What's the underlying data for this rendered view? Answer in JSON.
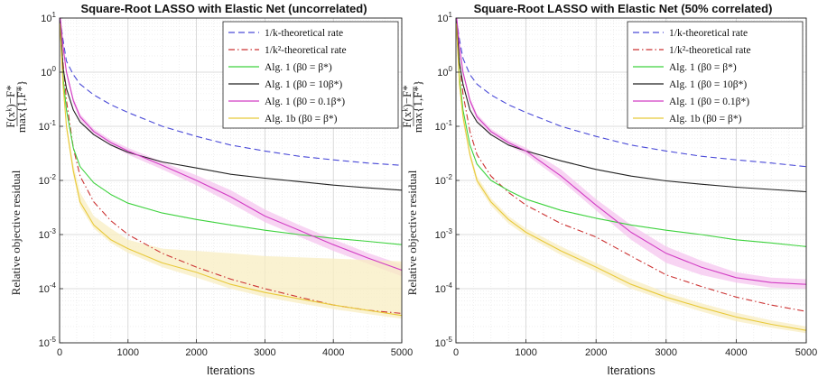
{
  "chart_data": [
    {
      "type": "line",
      "title": "Square-Root LASSO with Elastic Net (uncorrelated)",
      "xlabel": "Iterations",
      "ylabel": "Relative objective residual",
      "ylabel_formula": "F(x^k)−F* / max{1,F*}",
      "xlim": [
        0,
        5000
      ],
      "ylim_log10": [
        -5,
        1
      ],
      "yscale": "log",
      "grid": true,
      "legend_position": "top-right",
      "x_ticks": [
        "0",
        "1000",
        "2000",
        "3000",
        "4000",
        "5000"
      ],
      "y_ticks": [
        "10-5",
        "10-4",
        "10-3",
        "10-2",
        "10-1",
        "100",
        "101"
      ],
      "x": [
        5,
        50,
        100,
        200,
        300,
        500,
        750,
        1000,
        1500,
        2000,
        2500,
        3000,
        3500,
        4000,
        4500,
        5000
      ],
      "series": [
        {
          "name": "1/k-theoretical rate",
          "color": "#4a4ad8",
          "dash": "dashed",
          "values": [
            10,
            4,
            1.6,
            0.9,
            0.6,
            0.38,
            0.25,
            0.18,
            0.1,
            0.065,
            0.045,
            0.035,
            0.028,
            0.024,
            0.021,
            0.019
          ]
        },
        {
          "name": "1/k²-theoretical rate",
          "color": "#cc3333",
          "dash": "dashdot",
          "values": [
            8,
            1.5,
            0.3,
            0.04,
            0.012,
            0.004,
            0.0018,
            0.001,
            0.00045,
            0.00025,
            0.00015,
            0.0001,
            7e-05,
            5e-05,
            4e-05,
            3.5e-05
          ]
        },
        {
          "name": "Alg. 1 (β0 = β*)",
          "color": "#3dd23d",
          "dash": "solid",
          "values": [
            9,
            0.8,
            0.2,
            0.04,
            0.018,
            0.009,
            0.0055,
            0.0038,
            0.0025,
            0.0019,
            0.0015,
            0.0012,
            0.001,
            0.00085,
            0.00075,
            0.00065
          ]
        },
        {
          "name": "Alg. 1 (β0 = 10β*)",
          "color": "#222222",
          "dash": "solid",
          "values": [
            10,
            1.2,
            0.5,
            0.2,
            0.12,
            0.07,
            0.045,
            0.033,
            0.022,
            0.017,
            0.013,
            0.011,
            0.0095,
            0.0082,
            0.0073,
            0.0066
          ]
        },
        {
          "name": "Alg. 1 (β0 = 0.1β*)",
          "color": "#d23dc4",
          "dash": "solid",
          "band": "#f5c6ef",
          "values": [
            12,
            3,
            1,
            0.3,
            0.15,
            0.08,
            0.05,
            0.035,
            0.019,
            0.01,
            0.005,
            0.0022,
            0.0012,
            0.00065,
            0.00037,
            0.00022
          ],
          "band_low": [
            11,
            2.6,
            0.9,
            0.26,
            0.13,
            0.07,
            0.044,
            0.03,
            0.016,
            0.0082,
            0.0038,
            0.0017,
            0.00092,
            0.0005,
            0.00029,
            0.00017
          ],
          "band_high": [
            13,
            3.4,
            1.1,
            0.34,
            0.17,
            0.09,
            0.056,
            0.04,
            0.022,
            0.0125,
            0.0066,
            0.0029,
            0.0015,
            0.00082,
            0.00046,
            0.00028
          ]
        },
        {
          "name": "Alg. 1b (β0 = β*)",
          "color": "#e8c93a",
          "dash": "solid",
          "band": "#f8eec2",
          "values": [
            8,
            0.6,
            0.1,
            0.015,
            0.004,
            0.0015,
            0.0008,
            0.00055,
            0.0003,
            0.0002,
            0.00012,
            8.5e-05,
            6.5e-05,
            5e-05,
            4e-05,
            3.2e-05
          ],
          "band_low": [
            7,
            0.5,
            0.08,
            0.012,
            0.0033,
            0.0013,
            0.0007,
            0.00046,
            0.00025,
            0.00016,
            0.0001,
            7e-05,
            5.4e-05,
            4.2e-05,
            3.4e-05,
            2.8e-05
          ],
          "band_high": [
            9,
            0.7,
            0.12,
            0.02,
            0.006,
            0.0022,
            0.0013,
            0.0008,
            0.00055,
            0.0005,
            0.00045,
            0.0004,
            0.00038,
            0.00036,
            0.00034,
            0.00032
          ]
        }
      ]
    },
    {
      "type": "line",
      "title": "Square-Root LASSO with Elastic Net (50% correlated)",
      "xlabel": "Iterations",
      "ylabel": "Relative objective residual",
      "ylabel_formula": "F(x^k)−F* / max{1,F*}",
      "xlim": [
        0,
        5000
      ],
      "ylim_log10": [
        -5,
        1
      ],
      "yscale": "log",
      "grid": true,
      "legend_position": "top-right",
      "x_ticks": [
        "0",
        "1000",
        "2000",
        "3000",
        "4000",
        "5000"
      ],
      "y_ticks": [
        "10-5",
        "10-4",
        "10-3",
        "10-2",
        "10-1",
        "100",
        "101"
      ],
      "x": [
        5,
        50,
        100,
        200,
        300,
        500,
        750,
        1000,
        1500,
        2000,
        2500,
        3000,
        3500,
        4000,
        4500,
        5000
      ],
      "series": [
        {
          "name": "1/k-theoretical rate",
          "color": "#4a4ad8",
          "dash": "dashed",
          "values": [
            10,
            4,
            1.8,
            0.9,
            0.6,
            0.38,
            0.25,
            0.18,
            0.1,
            0.065,
            0.045,
            0.035,
            0.028,
            0.024,
            0.021,
            0.018
          ]
        },
        {
          "name": "1/k²-theoretical rate",
          "color": "#cc3333",
          "dash": "dashdot",
          "values": [
            8,
            1.5,
            0.4,
            0.08,
            0.03,
            0.012,
            0.006,
            0.0035,
            0.0016,
            0.0009,
            0.0004,
            0.00018,
            0.00011,
            7e-05,
            5e-05,
            3.8e-05
          ]
        },
        {
          "name": "Alg. 1 (β0 = β*)",
          "color": "#3dd23d",
          "dash": "solid",
          "values": [
            9,
            0.8,
            0.2,
            0.045,
            0.02,
            0.01,
            0.0065,
            0.0045,
            0.0028,
            0.002,
            0.0015,
            0.0012,
            0.001,
            0.0008,
            0.0007,
            0.0006
          ]
        },
        {
          "name": "Alg. 1 (β0 = 10β*)",
          "color": "#222222",
          "dash": "solid",
          "values": [
            10,
            1.5,
            0.6,
            0.2,
            0.12,
            0.07,
            0.045,
            0.035,
            0.023,
            0.016,
            0.012,
            0.0098,
            0.0085,
            0.0075,
            0.0068,
            0.0062
          ]
        },
        {
          "name": "Alg. 1 (β0 = 0.1β*)",
          "color": "#d23dc4",
          "dash": "solid",
          "band": "#f5c6ef",
          "values": [
            12,
            3,
            1,
            0.3,
            0.15,
            0.08,
            0.05,
            0.035,
            0.012,
            0.0035,
            0.0011,
            0.00045,
            0.00025,
            0.00016,
            0.00013,
            0.00012
          ],
          "band_low": [
            11,
            2.6,
            0.9,
            0.26,
            0.13,
            0.07,
            0.044,
            0.03,
            0.01,
            0.0028,
            0.0008,
            0.0003,
            0.00018,
            0.00013,
            0.000105,
            0.0001
          ],
          "band_high": [
            13,
            3.4,
            1.1,
            0.34,
            0.17,
            0.09,
            0.056,
            0.04,
            0.016,
            0.0045,
            0.0015,
            0.0006,
            0.00033,
            0.0002,
            0.00016,
            0.00015
          ]
        },
        {
          "name": "Alg. 1b (β0 = β*)",
          "color": "#e8c93a",
          "dash": "solid",
          "band": "#f8eec2",
          "values": [
            8,
            0.6,
            0.15,
            0.03,
            0.01,
            0.004,
            0.0019,
            0.0011,
            0.0005,
            0.00025,
            0.00012,
            7e-05,
            4.5e-05,
            3e-05,
            2.2e-05,
            1.7e-05
          ],
          "band_low": [
            7,
            0.5,
            0.12,
            0.025,
            0.0085,
            0.0034,
            0.0016,
            0.00095,
            0.00042,
            0.00021,
            0.0001,
            6e-05,
            3.8e-05,
            2.5e-05,
            1.9e-05,
            1.5e-05
          ],
          "band_high": [
            9,
            0.7,
            0.18,
            0.036,
            0.012,
            0.0047,
            0.0022,
            0.0013,
            0.0006,
            0.0003,
            0.00015,
            8.5e-05,
            5.4e-05,
            3.6e-05,
            2.6e-05,
            2e-05
          ]
        }
      ]
    }
  ]
}
